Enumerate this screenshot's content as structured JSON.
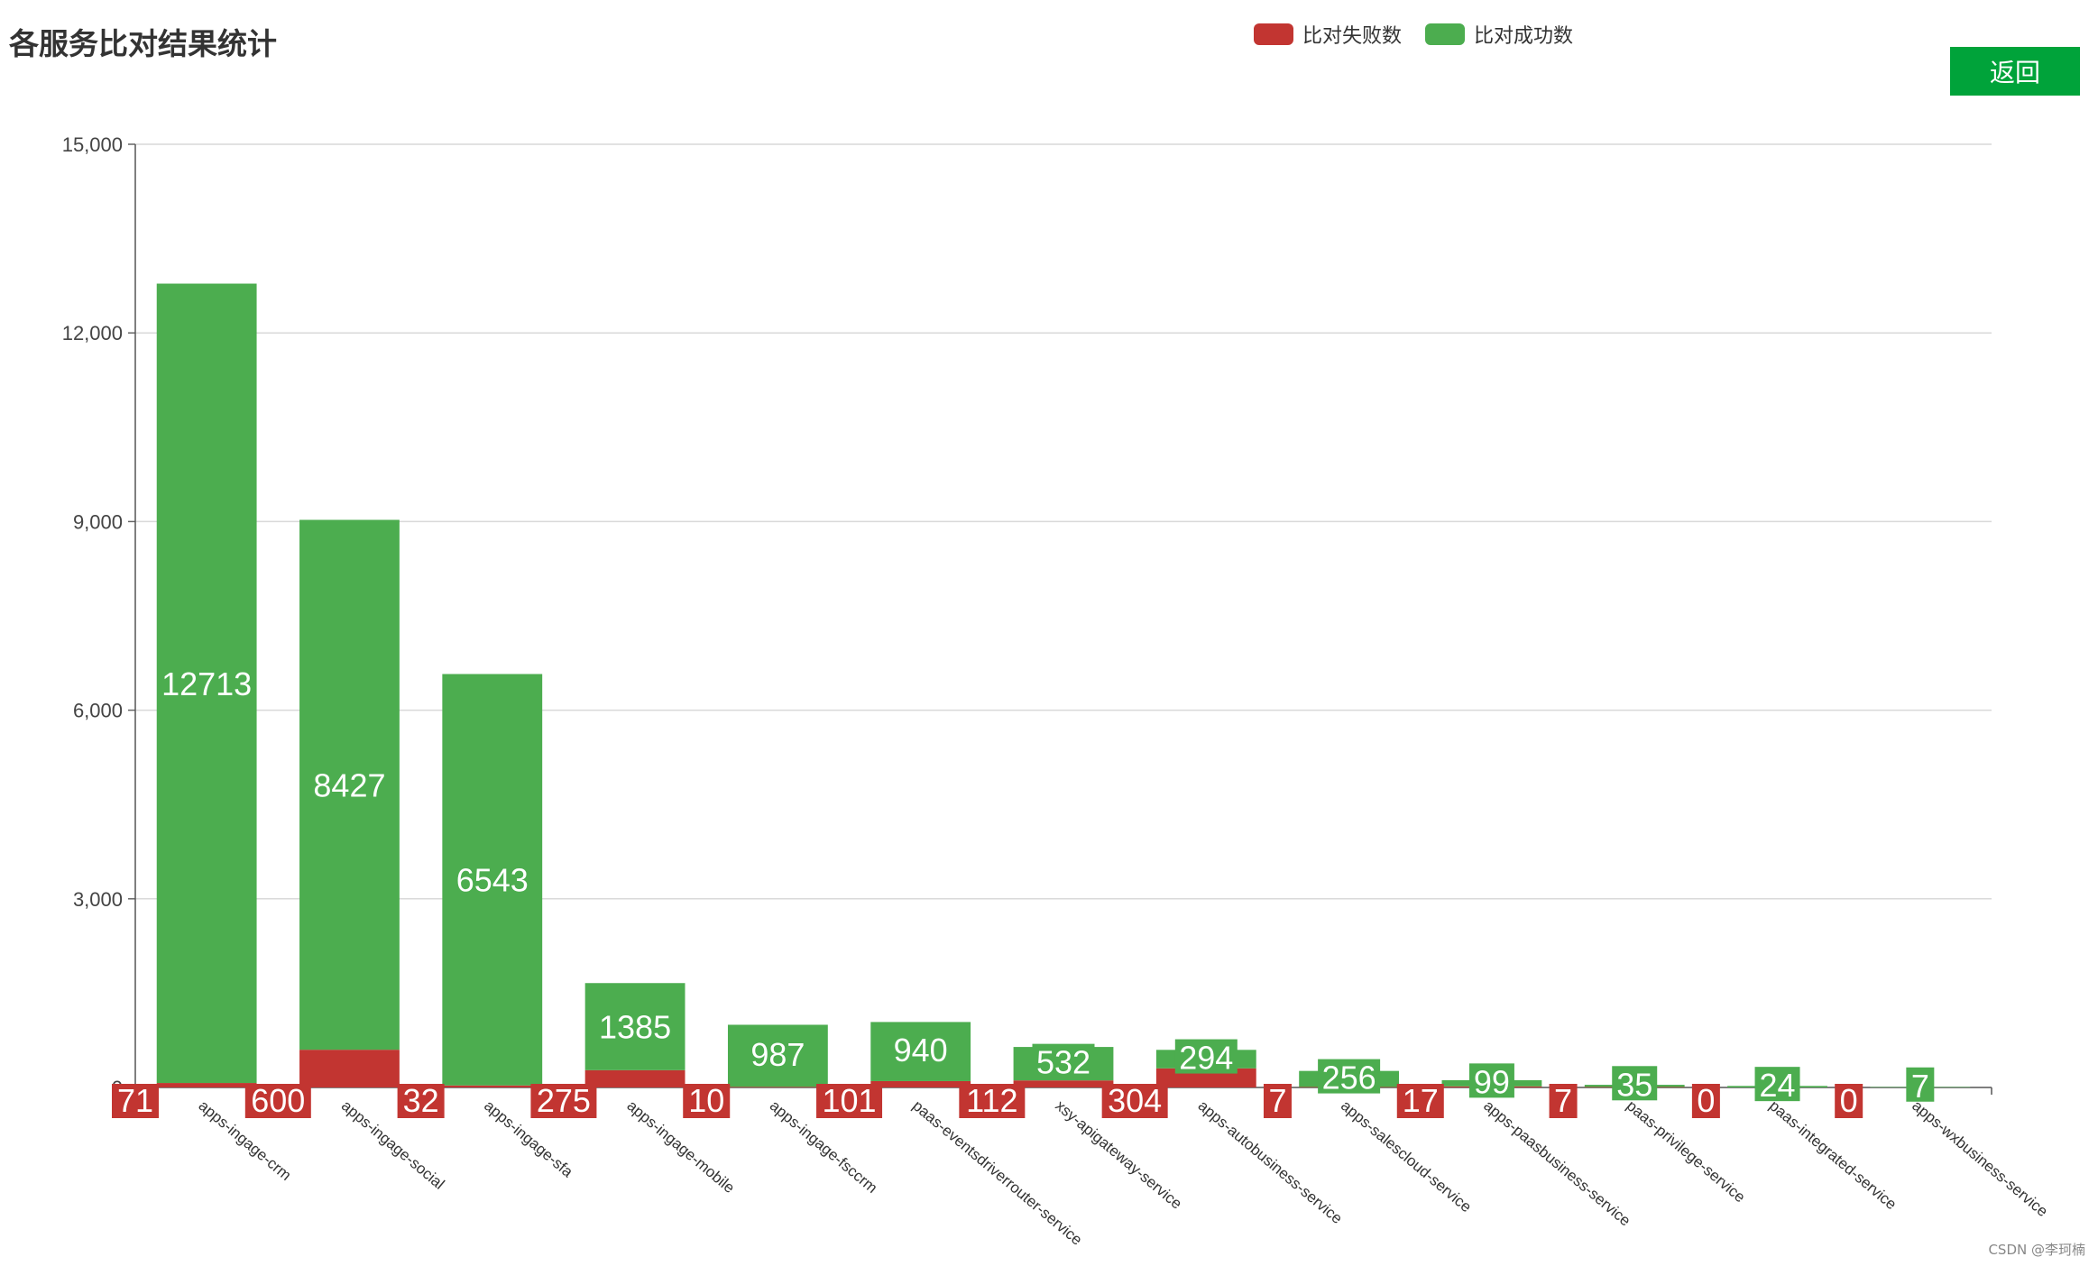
{
  "header": {
    "title": "各服务比对结果统计",
    "back_label": "返回"
  },
  "legend": [
    {
      "name": "比对失败数",
      "color": "#c23531"
    },
    {
      "name": "比对成功数",
      "color": "#4cad4f"
    }
  ],
  "watermark": "CSDN @李珂楠",
  "chart_data": {
    "type": "bar",
    "stacked": true,
    "title": "各服务比对结果统计",
    "categories": [
      "apps-ingage-crm",
      "apps-ingage-social",
      "apps-ingage-sfa",
      "apps-ingage-mobile",
      "apps-ingage-fsccrm",
      "paas-eventsdriverrouter-service",
      "xsy-apigateway-service",
      "apps-autobusiness-service",
      "apps-salescloud-service",
      "apps-paasbusiness-service",
      "paas-privilege-service",
      "paas-integrated-service",
      "apps-wxbusiness-service"
    ],
    "series": [
      {
        "name": "比对失败数",
        "color": "#c23531",
        "values": [
          71,
          600,
          32,
          275,
          10,
          101,
          112,
          304,
          7,
          17,
          7,
          0,
          0
        ]
      },
      {
        "name": "比对成功数",
        "color": "#4cad4f",
        "values": [
          12713,
          8427,
          6543,
          1385,
          987,
          940,
          532,
          294,
          256,
          99,
          35,
          24,
          7
        ]
      }
    ],
    "y_ticks": [
      "15,000",
      "12,000",
      "9,000",
      "6,000",
      "3,000",
      "0"
    ],
    "ylim": [
      0,
      15000
    ],
    "grid": true,
    "legend_position": "top-center"
  }
}
